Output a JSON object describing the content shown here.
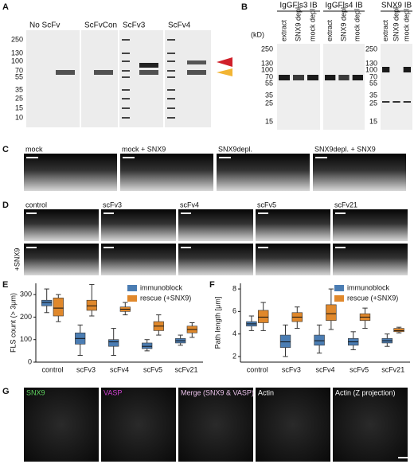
{
  "panel_labels": [
    "A",
    "B",
    "C",
    "D",
    "E",
    "F",
    "G"
  ],
  "panel_a": {
    "lanes": [
      "No ScFv",
      "ScFvCon",
      "ScFv3",
      "ScFv4"
    ],
    "ladder": [
      250,
      130,
      100,
      70,
      55,
      35,
      25,
      15,
      10
    ]
  },
  "panel_b": {
    "unit": "(kD)",
    "blots": [
      "IgGFls3 IB",
      "IgGFls4 IB",
      "SNX9 IB"
    ],
    "lanes": [
      "extract",
      "SNX9 depl",
      "mock depl"
    ],
    "ladder": [
      250,
      130,
      100,
      70,
      55,
      35,
      25,
      15
    ],
    "ladder_snx9": [
      250,
      130,
      100,
      70,
      55,
      35,
      25,
      15
    ]
  },
  "panel_c": {
    "conditions": [
      "mock",
      "mock + SNX9",
      "SNX9depl.",
      "SNX9depl. + SNX9"
    ]
  },
  "panel_d": {
    "conditions": [
      "control",
      "scFv3",
      "scFv4",
      "scFv5",
      "scFv21"
    ],
    "row_label": "+SNX9"
  },
  "panel_g": {
    "channels": [
      "SNX9",
      "VASP",
      "Merge (SNX9 & VASP)",
      "Actin",
      "Actin (Z projection)"
    ]
  },
  "chart_data": [
    {
      "type": "box",
      "y_label": "FLS count (> 3μm)",
      "categories": [
        "control",
        "scFv3",
        "scFv4",
        "scFv5",
        "scFv21"
      ],
      "series": [
        {
          "name": "immunoblock",
          "color": "#4b7db3",
          "values": [
            [
              220,
              250,
              265,
              275,
              325
            ],
            [
              30,
              80,
              105,
              130,
              165
            ],
            [
              30,
              70,
              90,
              100,
              150
            ],
            [
              50,
              60,
              70,
              85,
              100
            ],
            [
              75,
              85,
              95,
              105,
              120
            ]
          ]
        },
        {
          "name": "rescue (+SNX9)",
          "color": "#e0882b",
          "values": [
            [
              180,
              205,
              240,
              285,
              300
            ],
            [
              205,
              230,
              250,
              275,
              345
            ],
            [
              210,
              225,
              235,
              245,
              265
            ],
            [
              120,
              140,
              160,
              180,
              210
            ],
            [
              110,
              130,
              145,
              160,
              175
            ]
          ]
        }
      ],
      "ylim": [
        0,
        350
      ],
      "yticks": [
        0,
        100,
        200,
        300
      ]
    },
    {
      "type": "box",
      "y_label": "Path length [μm]",
      "categories": [
        "control",
        "scFv3",
        "scFv4",
        "scFv5",
        "scFv21"
      ],
      "series": [
        {
          "name": "immunoblock",
          "color": "#4b7db3",
          "values": [
            [
              4.3,
              4.7,
              4.9,
              5.1,
              5.6
            ],
            [
              2.0,
              2.8,
              3.3,
              3.9,
              4.8
            ],
            [
              2.3,
              3.0,
              3.4,
              3.9,
              4.8
            ],
            [
              2.6,
              3.0,
              3.3,
              3.6,
              4.2
            ],
            [
              2.9,
              3.2,
              3.4,
              3.6,
              4.0
            ]
          ]
        },
        {
          "name": "rescue (+SNX9)",
          "color": "#e0882b",
          "values": [
            [
              4.3,
              5.0,
              5.5,
              6.1,
              6.8
            ],
            [
              4.5,
              5.1,
              5.5,
              5.9,
              6.4
            ],
            [
              4.4,
              5.2,
              5.8,
              6.6,
              8.0
            ],
            [
              4.5,
              5.2,
              5.5,
              5.8,
              6.3
            ],
            [
              4.1,
              4.2,
              4.3,
              4.5,
              4.6
            ]
          ]
        }
      ],
      "ylim": [
        1.5,
        8.5
      ],
      "yticks": [
        2,
        4,
        6,
        8
      ]
    }
  ]
}
